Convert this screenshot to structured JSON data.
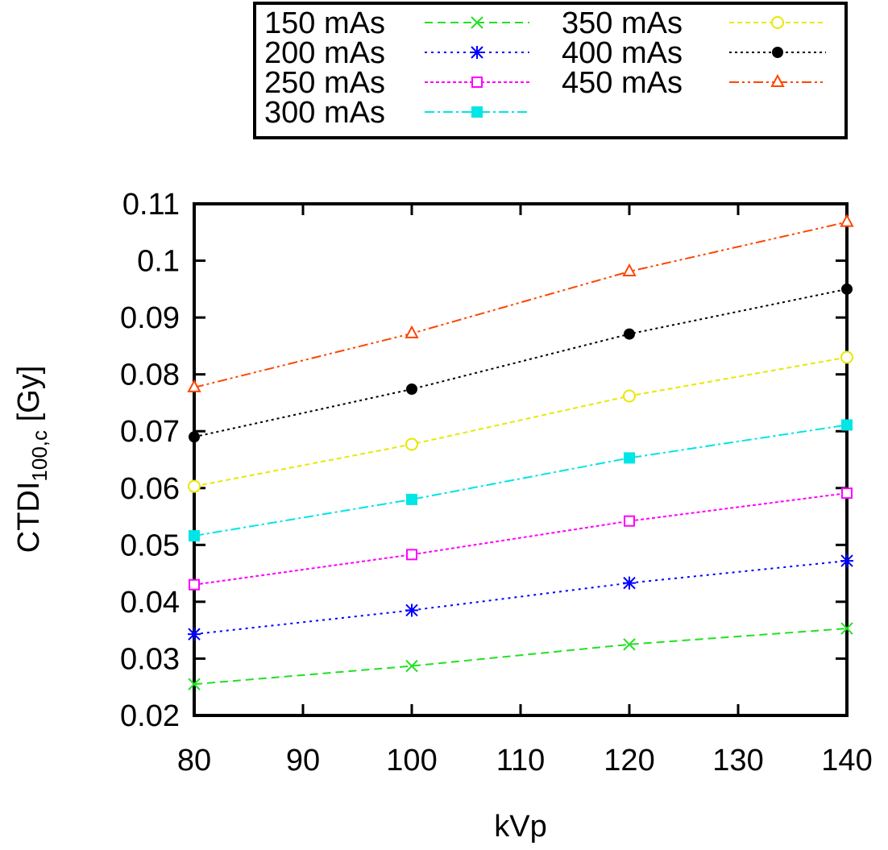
{
  "chart_data": {
    "type": "line",
    "title": "",
    "xlabel": "kVp",
    "ylabel_main": "CTDI",
    "ylabel_sub": "100,c",
    "ylabel_unit": " [Gy]",
    "xlim": [
      80,
      140
    ],
    "ylim": [
      0.02,
      0.11
    ],
    "xticks": [
      "80",
      "90",
      "100",
      "110",
      "120",
      "130",
      "140"
    ],
    "yticks": [
      "0.02",
      "0.03",
      "0.04",
      "0.05",
      "0.06",
      "0.07",
      "0.08",
      "0.09",
      "0.1",
      "0.11"
    ],
    "grid": false,
    "legend_placement": "top, outside, boxed",
    "x": [
      80,
      100,
      120,
      140
    ],
    "series": [
      {
        "name": "150 mAs",
        "color": "#22e022",
        "marker": "x",
        "dash": "10,6",
        "values": [
          0.0255,
          0.0287,
          0.0325,
          0.0353
        ]
      },
      {
        "name": "200 mAs",
        "color": "#0000ff",
        "marker": "star",
        "dash": "3,5",
        "values": [
          0.0343,
          0.0385,
          0.0433,
          0.0472
        ]
      },
      {
        "name": "250 mAs",
        "color": "#ff00ff",
        "marker": "open-square",
        "dash": "4,3",
        "values": [
          0.043,
          0.0483,
          0.0542,
          0.0591
        ]
      },
      {
        "name": "300 mAs",
        "color": "#00e5e5",
        "marker": "filled-square",
        "dash": "12,4,3,4",
        "values": [
          0.0516,
          0.058,
          0.0653,
          0.0711
        ]
      },
      {
        "name": "350 mAs",
        "color": "#e8e800",
        "marker": "open-circle",
        "dash": "6,4",
        "values": [
          0.0603,
          0.0677,
          0.0762,
          0.083
        ]
      },
      {
        "name": "400 mAs",
        "color": "#000000",
        "marker": "filled-circle",
        "dash": "3,4",
        "values": [
          0.069,
          0.0774,
          0.0871,
          0.095
        ]
      },
      {
        "name": "450 mAs",
        "color": "#ff4500",
        "marker": "open-triangle",
        "dash": "12,4,3,4,3,4",
        "values": [
          0.0777,
          0.0872,
          0.0981,
          0.1068
        ]
      }
    ]
  }
}
